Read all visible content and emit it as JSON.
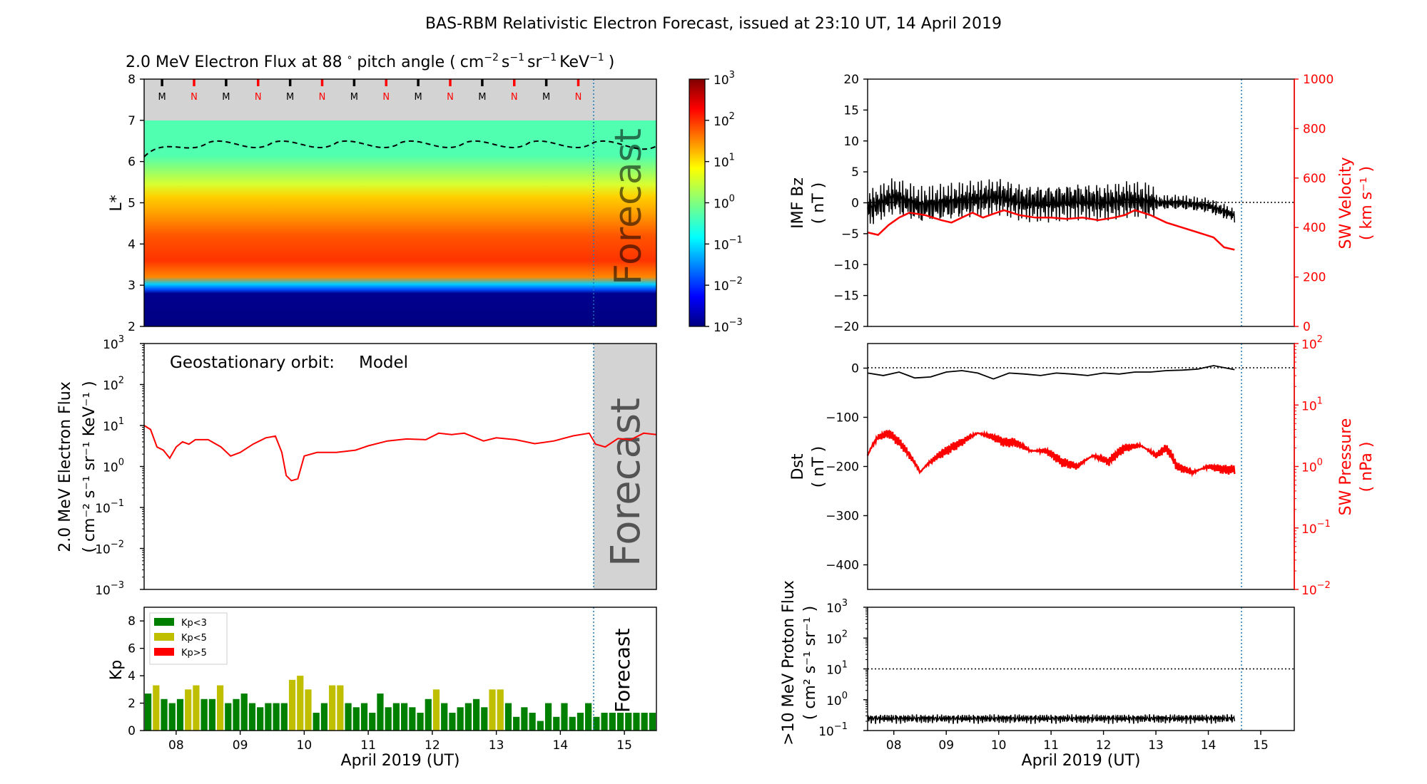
{
  "title": "BAS-RBM Relativistic Electron Forecast, issued at 23:10 UT, 14 April 2019",
  "colors": {
    "model": "#ff0000",
    "forecast_shade": "#d3d3d3",
    "vline": "#1f77b4",
    "kp_low": "#008000",
    "kp_mid": "#bfbf00",
    "kp_high": "#ff0000"
  },
  "x_axis": {
    "ticks": [
      "08",
      "09",
      "10",
      "11",
      "12",
      "13",
      "14",
      "15"
    ],
    "xlim": [
      7.5,
      15.5
    ],
    "label": "April 2019 (UT)",
    "forecast_start": 14.46
  },
  "flux_map": {
    "title_main": "2.0 MeV Electron Flux at 88",
    "title_deg": "∘",
    "title_unit": "pitch angle (",
    "title_close": ")",
    "ylabel": "L*",
    "ylim": [
      2,
      8
    ],
    "yticks": [
      "2",
      "3",
      "4",
      "5",
      "6",
      "7",
      "8"
    ],
    "orbit_markers": [
      "M",
      "N",
      "M",
      "N",
      "M",
      "N",
      "M",
      "N",
      "M",
      "N",
      "M",
      "N",
      "M",
      "N"
    ],
    "forecast_label": "Forecast",
    "colorbar_ticks": [
      "10",
      "10",
      "10",
      "10",
      "10",
      "10",
      "10"
    ],
    "colorbar_exps": [
      "3",
      "2",
      "1",
      "0",
      "−1",
      "−2",
      "−3"
    ]
  },
  "geo_flux": {
    "annotation": "Geostationary orbit:",
    "annotation_value": "Model",
    "ylabel_line1": "2.0 MeV Electron Flux",
    "ylabel_line2": "( cm⁻² s⁻¹ sr⁻¹ KeV⁻¹ )",
    "ylim_exp": [
      -3,
      3
    ],
    "yticks_exp": [
      "3",
      "2",
      "1",
      "0",
      "−1",
      "−2",
      "−3"
    ],
    "forecast_label": "Forecast",
    "chart_data": {
      "type": "line",
      "x": [
        7.5,
        7.6,
        7.7,
        7.8,
        7.9,
        8.0,
        8.1,
        8.2,
        8.3,
        8.5,
        8.7,
        8.85,
        9.0,
        9.2,
        9.4,
        9.55,
        9.65,
        9.72,
        9.8,
        9.9,
        10.0,
        10.2,
        10.5,
        10.8,
        11.0,
        11.3,
        11.6,
        11.9,
        12.1,
        12.3,
        12.5,
        12.8,
        13.0,
        13.3,
        13.6,
        13.9,
        14.2,
        14.45,
        14.55,
        14.7,
        14.9,
        15.1,
        15.3,
        15.5
      ],
      "y": [
        10,
        8,
        3,
        2.5,
        1.6,
        3,
        4,
        3.5,
        4.5,
        4.5,
        3,
        1.8,
        2.2,
        3.5,
        5,
        5.5,
        2.2,
        0.6,
        0.45,
        0.5,
        1.8,
        2.2,
        2.2,
        2.5,
        3.2,
        4.2,
        4.7,
        4.5,
        6.5,
        6,
        6.5,
        4.2,
        5,
        4.5,
        3.6,
        4.2,
        5.6,
        6.5,
        3.5,
        3,
        4.8,
        4.5,
        6.5,
        6
      ]
    }
  },
  "kp": {
    "ylabel": "Kp",
    "ylim": [
      0,
      9
    ],
    "yticks": [
      "0",
      "2",
      "4",
      "6",
      "8"
    ],
    "legend": [
      "Kp<3",
      "Kp<5",
      "Kp>5"
    ],
    "forecast_label": "Forecast",
    "chart_data": {
      "type": "bar",
      "bin_hours": 3,
      "start": 7.5,
      "values": [
        2.7,
        3.3,
        2.3,
        2.0,
        2.3,
        3.0,
        3.3,
        2.3,
        2.3,
        3.3,
        2.0,
        2.3,
        2.7,
        2.0,
        1.7,
        2.0,
        2.0,
        2.0,
        3.7,
        4.0,
        3.0,
        1.3,
        2.0,
        3.3,
        3.3,
        2.0,
        1.7,
        2.0,
        1.3,
        2.7,
        1.7,
        2.0,
        2.0,
        1.7,
        1.3,
        2.3,
        3.0,
        2.0,
        1.3,
        1.7,
        2.0,
        2.3,
        1.7,
        3.0,
        3.0,
        2.0,
        1.0,
        1.7,
        1.3,
        0.7,
        2.0,
        1.0,
        2.0,
        1.0,
        1.3,
        2.0,
        1.0,
        1.3,
        1.3,
        1.3,
        1.3,
        1.3,
        1.3,
        1.3
      ]
    }
  },
  "imf": {
    "ylabel_line1": "IMF Bz",
    "ylabel_line2": "( nT )",
    "ylim": [
      -20,
      20
    ],
    "yticks": [
      "20",
      "15",
      "10",
      "5",
      "0",
      "−5",
      "−10",
      "−15",
      "−20"
    ],
    "y2label_line1": "SW Velocity",
    "y2label_line2": "( km s⁻¹ )",
    "y2lim": [
      0,
      1000
    ],
    "y2ticks": [
      "1000",
      "800",
      "600",
      "400",
      "200",
      "0"
    ],
    "chart_data": {
      "type": "line",
      "series": [
        {
          "x": [
            7.5,
            8.0,
            8.5,
            9.0,
            9.5,
            10.0,
            10.5,
            11.0,
            11.5,
            12.0,
            12.5,
            13.0,
            13.5,
            14.0,
            14.5
          ],
          "y": [
            -1,
            1,
            -0.5,
            0,
            0.5,
            1,
            0,
            0,
            0.3,
            0,
            0.5,
            0,
            0,
            -0.5,
            -2
          ]
        },
        {
          "x": [
            7.5,
            7.7,
            7.9,
            8.1,
            8.3,
            8.6,
            8.9,
            9.1,
            9.3,
            9.5,
            9.7,
            9.9,
            10.1,
            10.4,
            10.7,
            11.0,
            11.3,
            11.6,
            11.9,
            12.2,
            12.4,
            12.6,
            12.9,
            13.2,
            13.5,
            13.8,
            14.1,
            14.3,
            14.5
          ],
          "y": [
            380,
            370,
            410,
            440,
            460,
            450,
            430,
            420,
            440,
            460,
            440,
            455,
            470,
            450,
            440,
            440,
            435,
            440,
            430,
            440,
            450,
            470,
            450,
            420,
            400,
            380,
            360,
            320,
            310
          ]
        }
      ]
    }
  },
  "dst": {
    "ylabel_line1": "Dst",
    "ylabel_line2": "( nT )",
    "ylim": [
      -450,
      50
    ],
    "yticks": [
      "0",
      "−100",
      "−200",
      "−300",
      "−400"
    ],
    "y2label_line1": "SW Pressure",
    "y2label_line2": "( nPa )",
    "y2ticks_exp": [
      "2",
      "1",
      "0",
      "−1",
      "−2"
    ],
    "chart_data": {
      "type": "line",
      "series": [
        {
          "x": [
            7.5,
            7.8,
            8.1,
            8.4,
            8.7,
            9.0,
            9.3,
            9.6,
            9.9,
            10.2,
            10.5,
            10.8,
            11.1,
            11.4,
            11.7,
            12.0,
            12.3,
            12.6,
            12.9,
            13.2,
            13.5,
            13.8,
            14.1,
            14.5
          ],
          "y": [
            -10,
            -15,
            -8,
            -20,
            -18,
            -8,
            -5,
            -10,
            -22,
            -10,
            -12,
            -15,
            -10,
            -12,
            -15,
            -10,
            -12,
            -8,
            -8,
            -5,
            -4,
            -2,
            5,
            -3
          ]
        },
        {
          "x": [
            7.5,
            7.7,
            7.9,
            8.1,
            8.3,
            8.5,
            8.7,
            9.0,
            9.3,
            9.6,
            9.9,
            10.1,
            10.3,
            10.6,
            10.9,
            11.2,
            11.5,
            11.8,
            12.1,
            12.4,
            12.7,
            13.0,
            13.2,
            13.4,
            13.7,
            14.0,
            14.3,
            14.5
          ],
          "y": [
            1.5,
            3,
            3.5,
            2.5,
            1.5,
            0.8,
            1.2,
            1.8,
            2.5,
            3.5,
            3,
            2.5,
            2.5,
            1.8,
            1.8,
            1.2,
            1.0,
            1.5,
            1.2,
            2.0,
            2.2,
            1.5,
            2.0,
            1.0,
            0.8,
            1.0,
            0.9,
            0.9
          ]
        }
      ]
    }
  },
  "proton": {
    "ylabel_line1": ">10 MeV Proton Flux",
    "ylabel_line2": "( cm² s⁻¹ sr⁻¹ )",
    "yticks_exp": [
      "3",
      "2",
      "1",
      "0",
      "−1"
    ],
    "threshold": 10,
    "chart_data": {
      "type": "line",
      "x": [
        7.5,
        14.5
      ],
      "y": [
        0.25,
        0.25
      ]
    }
  }
}
